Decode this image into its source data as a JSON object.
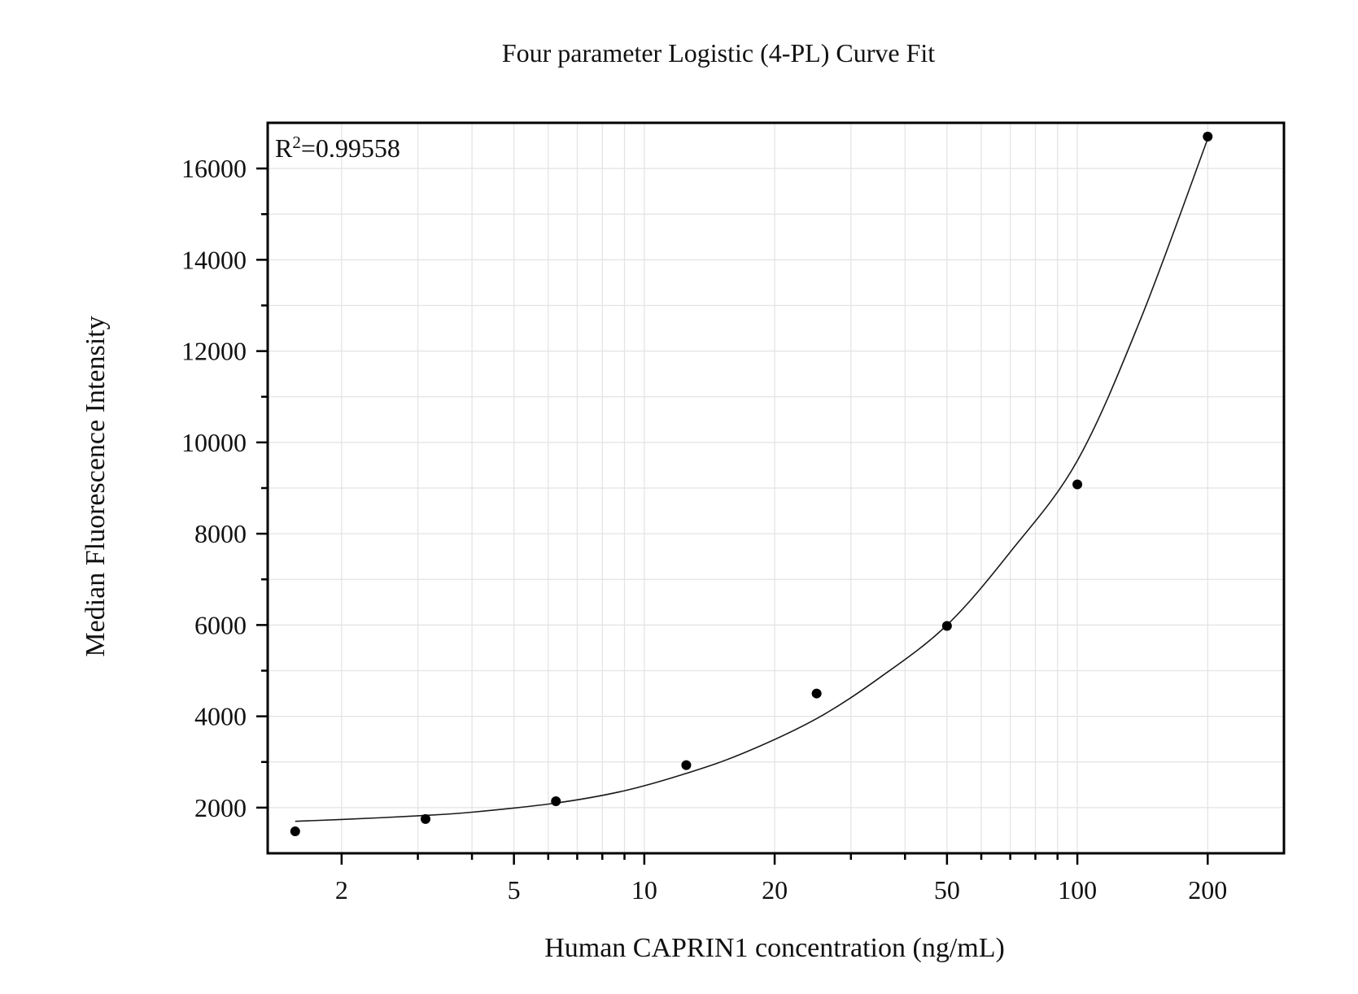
{
  "chart_data": {
    "type": "scatter",
    "title": "Four parameter Logistic (4-PL) Curve Fit",
    "xlabel": "Human CAPRIN1 concentration (ng/mL)",
    "ylabel": "Median Fluorescence Intensity",
    "x_scale": "log",
    "xlim": [
      1.35,
      300
    ],
    "ylim": [
      1000,
      17000
    ],
    "x_ticks": [
      2,
      5,
      10,
      20,
      50,
      100,
      200
    ],
    "x_tick_labels": [
      "2",
      "5",
      "10",
      "20",
      "50",
      "100",
      "200"
    ],
    "y_ticks": [
      2000,
      4000,
      6000,
      8000,
      10000,
      12000,
      14000,
      16000
    ],
    "y_tick_labels": [
      "2000",
      "4000",
      "6000",
      "8000",
      "10000",
      "12000",
      "14000",
      "16000"
    ],
    "grid": true,
    "annotation": {
      "r2_base": "R",
      "r2_exp": "2",
      "r2_value": "=0.99558"
    },
    "points": [
      {
        "x": 1.5625,
        "y": 1480
      },
      {
        "x": 3.125,
        "y": 1750
      },
      {
        "x": 6.25,
        "y": 2140
      },
      {
        "x": 12.5,
        "y": 2930
      },
      {
        "x": 25,
        "y": 4500
      },
      {
        "x": 50,
        "y": 5980
      },
      {
        "x": 100,
        "y": 9080
      },
      {
        "x": 200,
        "y": 16700
      }
    ],
    "fit_curve": {
      "model": "4PL",
      "x": [
        1.5625,
        2,
        3,
        4,
        6.25,
        9,
        12.5,
        17,
        25,
        35,
        50,
        70,
        100,
        140,
        200
      ],
      "y": [
        1700,
        1740,
        1820,
        1900,
        2100,
        2370,
        2750,
        3200,
        3950,
        4850,
        6000,
        7600,
        9600,
        12700,
        16650
      ]
    },
    "colors": {
      "points": "#000000",
      "curve": "#1a1a1a",
      "grid": "#e3e3e3",
      "axis": "#000000"
    }
  }
}
